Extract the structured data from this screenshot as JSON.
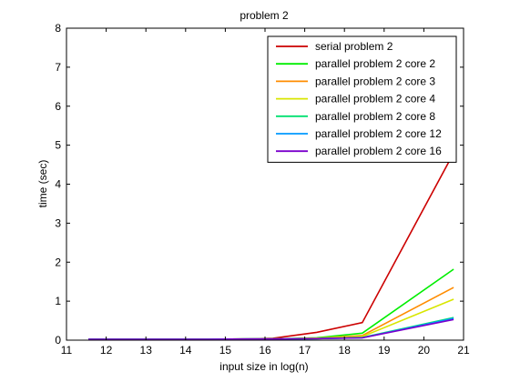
{
  "chart_data": {
    "type": "line",
    "title": "problem 2",
    "xlabel": "input size in log(n)",
    "ylabel": "time (sec)",
    "xlim": [
      11,
      21
    ],
    "ylim": [
      0,
      8
    ],
    "xticks": [
      11,
      12,
      13,
      14,
      15,
      16,
      17,
      18,
      19,
      20,
      21
    ],
    "yticks": [
      0,
      1,
      2,
      3,
      4,
      5,
      6,
      7,
      8
    ],
    "grid": false,
    "legend_position": "top-right",
    "x": [
      11.55,
      12.55,
      13.55,
      14.55,
      15.55,
      16.2,
      17.3,
      18.45,
      20.75
    ],
    "series": [
      {
        "name": "serial problem 2",
        "color": "#cc0000",
        "values": [
          0.02,
          0.02,
          0.02,
          0.02,
          0.03,
          0.05,
          0.2,
          0.45,
          4.8
        ]
      },
      {
        "name": "parallel problem 2 core 2",
        "color": "#00ee00",
        "values": [
          0.02,
          0.02,
          0.02,
          0.02,
          0.03,
          0.03,
          0.06,
          0.18,
          1.82
        ]
      },
      {
        "name": "parallel problem 2 core 3",
        "color": "#ff8c00",
        "values": [
          0.02,
          0.02,
          0.02,
          0.02,
          0.03,
          0.03,
          0.05,
          0.12,
          1.35
        ]
      },
      {
        "name": "parallel problem 2 core 4",
        "color": "#d8e600",
        "values": [
          0.02,
          0.02,
          0.02,
          0.02,
          0.03,
          0.03,
          0.05,
          0.09,
          1.05
        ]
      },
      {
        "name": "parallel problem 2 core 8",
        "color": "#00e070",
        "values": [
          0.02,
          0.02,
          0.02,
          0.02,
          0.03,
          0.03,
          0.04,
          0.07,
          0.58
        ]
      },
      {
        "name": "parallel problem 2 core 12",
        "color": "#0099ff",
        "values": [
          0.02,
          0.02,
          0.02,
          0.02,
          0.03,
          0.03,
          0.04,
          0.06,
          0.56
        ]
      },
      {
        "name": "parallel problem 2 core 16",
        "color": "#7a00cc",
        "values": [
          0.02,
          0.02,
          0.02,
          0.02,
          0.03,
          0.03,
          0.04,
          0.06,
          0.53
        ]
      }
    ]
  }
}
